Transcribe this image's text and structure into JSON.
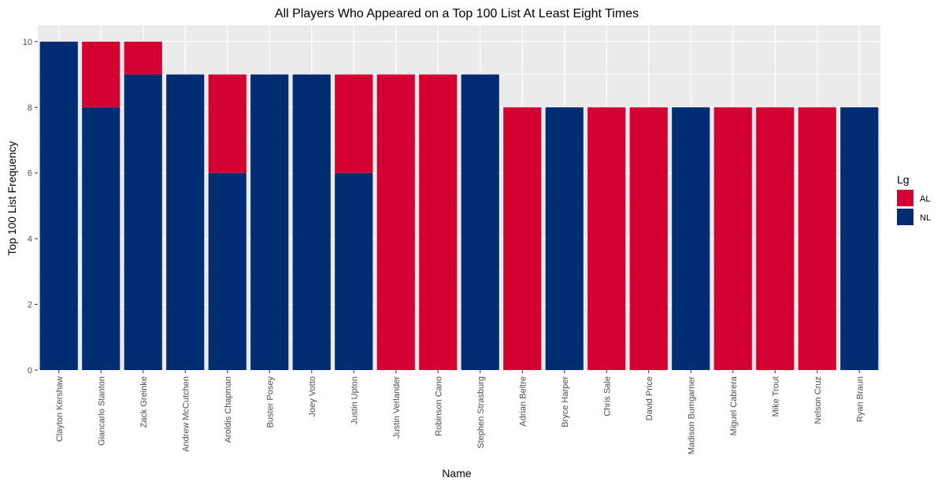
{
  "chart_data": {
    "type": "bar",
    "stacked": true,
    "title": "All Players Who Appeared on a Top 100 List At Least Eight Times",
    "xlabel": "Name",
    "ylabel": "Top 100 List Frequency",
    "ylim": [
      0,
      10.5
    ],
    "yticks": [
      0,
      2,
      4,
      6,
      8,
      10
    ],
    "grid": true,
    "legend_placement": "right",
    "legend_title": "Lg",
    "background_color": "#ebebeb",
    "categories": [
      "Clayton Kershaw",
      "Giancarlo Stanton",
      "Zack Greinke",
      "Andrew McCutchen",
      "Aroldis Chapman",
      "Buster Posey",
      "Joey Votto",
      "Justin Upton",
      "Justin Verlander",
      "Robinson Cano",
      "Stephen Strasburg",
      "Adrian Beltre",
      "Bryce Harper",
      "Chris Sale",
      "David Price",
      "Madison Bumgarner",
      "Miguel Cabrera",
      "Mike Trout",
      "Nelson Cruz",
      "Ryan Braun"
    ],
    "series": [
      {
        "name": "AL",
        "color": "#d50032",
        "values": [
          0,
          2,
          1,
          0,
          3,
          0,
          0,
          3,
          9,
          9,
          0,
          8,
          0,
          8,
          8,
          0,
          8,
          8,
          8,
          0
        ]
      },
      {
        "name": "NL",
        "color": "#002d72",
        "values": [
          10,
          8,
          9,
          9,
          6,
          9,
          9,
          6,
          0,
          0,
          9,
          0,
          8,
          0,
          0,
          8,
          0,
          0,
          0,
          8
        ]
      }
    ]
  }
}
